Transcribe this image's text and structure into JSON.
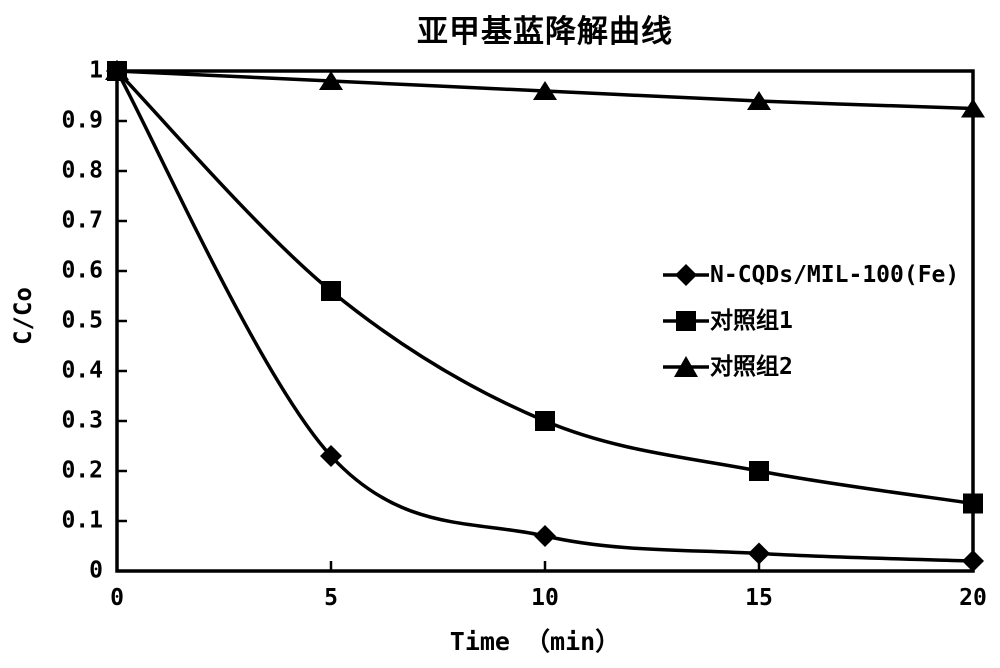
{
  "chart_data": {
    "type": "line",
    "title": "亚甲基蓝降解曲线",
    "xlabel": "Time （min）",
    "ylabel": "C/Co",
    "x": [
      0,
      5,
      10,
      15,
      20
    ],
    "xtick_labels": [
      "0",
      "5",
      "10",
      "15",
      "20"
    ],
    "ytick_labels": [
      "1",
      "0.9",
      "0.8",
      "0.7",
      "0.6",
      "0.5",
      "0.4",
      "0.3",
      "0.2",
      "0.1",
      "0"
    ],
    "xlim": [
      0,
      20
    ],
    "ylim": [
      0,
      1
    ],
    "grid": false,
    "legend_position": "middle-right",
    "line_style": "smooth",
    "series": [
      {
        "name": "N-CQDs/MIL-100(Fe)",
        "marker": "diamond",
        "color": "#000000",
        "values": [
          1,
          0.23,
          0.07,
          0.035,
          0.02
        ]
      },
      {
        "name": "对照组1",
        "marker": "square",
        "color": "#000000",
        "values": [
          1,
          0.56,
          0.3,
          0.2,
          0.135
        ]
      },
      {
        "name": "对照组2",
        "marker": "triangle",
        "color": "#000000",
        "values": [
          1,
          0.98,
          0.96,
          0.94,
          0.925
        ]
      }
    ]
  },
  "colors": {
    "foreground": "#000000",
    "background": "#ffffff"
  }
}
